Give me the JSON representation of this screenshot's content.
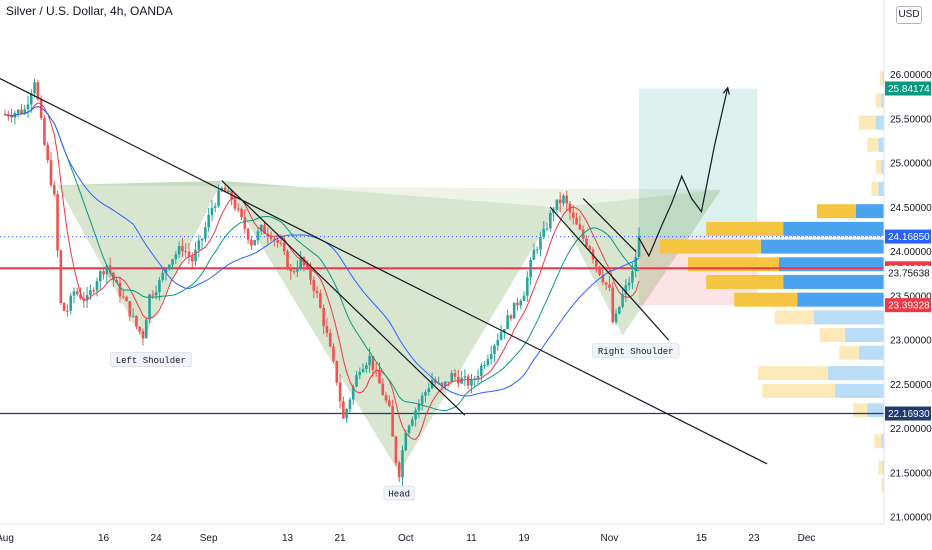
{
  "title": "Silver / U.S. Dollar, 4h, OANDA",
  "currency_button": "USD",
  "chart_data": {
    "type": "candlestick",
    "symbol": "Silver / U.S. Dollar",
    "interval": "4h",
    "source": "OANDA",
    "y_axis": {
      "ylim": [
        21.0,
        26.2
      ],
      "tick_labels": [
        "21.00000",
        "21.50000",
        "22.00000",
        "22.50000",
        "23.00000",
        "23.50000",
        "24.00000",
        "24.50000",
        "25.00000",
        "25.50000",
        "26.00000"
      ],
      "tick_values": [
        21.0,
        21.5,
        22.0,
        22.5,
        23.0,
        23.5,
        24.0,
        24.5,
        25.0,
        25.5,
        26.0
      ]
    },
    "x_axis": {
      "tick_labels": [
        "Aug",
        "16",
        "24",
        "Sep",
        "13",
        "21",
        "Oct",
        "11",
        "19",
        "Nov",
        "15",
        "23",
        "Dec"
      ],
      "tick_days": [
        0,
        15,
        23,
        31,
        43,
        51,
        61,
        71,
        79,
        92,
        106,
        114,
        122
      ]
    },
    "price_tags": [
      {
        "value": "25.84174",
        "num": 25.84174,
        "color": "#089981"
      },
      {
        "value": "24.16850",
        "num": 24.1685,
        "color": "#2962ff"
      },
      {
        "value": "23.81010",
        "num": 23.8101,
        "color": "#f23645"
      },
      {
        "value": "23.75638",
        "num": 23.75638,
        "color": "none"
      },
      {
        "value": "23.39328",
        "num": 23.39328,
        "color": "#f23645"
      },
      {
        "value": "22.16930",
        "num": 22.1693,
        "color": "#1e3a6e"
      }
    ],
    "horizontal_lines": [
      {
        "value": 23.8101,
        "color": "#f23645"
      },
      {
        "value": 22.1693,
        "color": "#1e3a6e"
      }
    ],
    "annotations": [
      "Left Shoulder",
      "Head",
      "Right Shoulder"
    ],
    "close_path": [
      [
        0,
        25.55
      ],
      [
        3,
        25.6
      ],
      [
        4.5,
        25.95
      ],
      [
        6,
        25.2
      ],
      [
        7.5,
        24.6
      ],
      [
        8.5,
        23.4
      ],
      [
        9.3,
        23.3
      ],
      [
        10.5,
        23.55
      ],
      [
        12.5,
        23.45
      ],
      [
        14,
        23.7
      ],
      [
        15.5,
        23.85
      ],
      [
        17,
        23.6
      ],
      [
        18.5,
        23.4
      ],
      [
        20,
        23.15
      ],
      [
        21,
        23.05
      ],
      [
        22,
        23.5
      ],
      [
        23.5,
        23.65
      ],
      [
        25,
        23.9
      ],
      [
        27,
        24.05
      ],
      [
        28.5,
        23.9
      ],
      [
        30,
        24.15
      ],
      [
        31.5,
        24.5
      ],
      [
        33,
        24.7
      ],
      [
        34.5,
        24.6
      ],
      [
        36,
        24.35
      ],
      [
        37.5,
        24.1
      ],
      [
        39,
        24.25
      ],
      [
        40.5,
        24.2
      ],
      [
        42,
        24.05
      ],
      [
        43.5,
        23.75
      ],
      [
        45,
        23.9
      ],
      [
        46.5,
        23.7
      ],
      [
        47.5,
        23.5
      ],
      [
        49,
        23.05
      ],
      [
        50.5,
        22.55
      ],
      [
        51.5,
        22.1
      ],
      [
        52.5,
        22.35
      ],
      [
        54,
        22.7
      ],
      [
        55.5,
        22.8
      ],
      [
        57,
        22.5
      ],
      [
        58.5,
        22.2
      ],
      [
        59.3,
        21.7
      ],
      [
        60,
        21.5
      ],
      [
        61,
        22.0
      ],
      [
        62,
        22.15
      ],
      [
        63.5,
        22.35
      ],
      [
        65,
        22.55
      ],
      [
        66.5,
        22.45
      ],
      [
        68,
        22.6
      ],
      [
        69.5,
        22.55
      ],
      [
        71,
        22.5
      ],
      [
        72.5,
        22.7
      ],
      [
        74,
        22.9
      ],
      [
        75.5,
        23.1
      ],
      [
        77,
        23.3
      ],
      [
        79,
        23.55
      ],
      [
        80.5,
        24.0
      ],
      [
        82,
        24.2
      ],
      [
        83.5,
        24.5
      ],
      [
        85,
        24.6
      ],
      [
        86.5,
        24.35
      ],
      [
        88,
        24.15
      ],
      [
        89,
        24.05
      ],
      [
        90,
        23.85
      ],
      [
        91,
        23.7
      ],
      [
        92,
        23.55
      ],
      [
        92.5,
        23.2
      ],
      [
        93,
        23.25
      ],
      [
        94,
        23.5
      ],
      [
        95.5,
        23.75
      ],
      [
        96.5,
        24.15
      ]
    ],
    "overlays": {
      "moving_averages": [
        {
          "name": "ma_fast",
          "color": "#f23645"
        },
        {
          "name": "ma_mid",
          "color": "#089981"
        },
        {
          "name": "ma_slow",
          "color": "#2962ff"
        }
      ],
      "trendlines": [
        {
          "from": [
            -2,
            26.0
          ],
          "to": [
            116,
            21.6
          ]
        },
        {
          "from": [
            33,
            24.8
          ],
          "to": [
            70,
            22.15
          ]
        },
        {
          "from": [
            83,
            24.5
          ],
          "to": [
            101,
            23.0
          ]
        },
        {
          "from": [
            88,
            24.6
          ],
          "to": [
            96,
            24.0
          ]
        }
      ],
      "head_and_shoulders_fill": [
        [
          8,
          24.75
        ],
        [
          21,
          23.0
        ],
        [
          33,
          24.8
        ],
        [
          60,
          21.5
        ],
        [
          84,
          24.5
        ],
        [
          94,
          23.05
        ],
        [
          96.5,
          24.15
        ],
        [
          97,
          23.7
        ],
        [
          109,
          24.7
        ]
      ],
      "projected_path": [
        [
          96.5,
          24.15
        ],
        [
          98,
          23.95
        ],
        [
          100,
          24.3
        ],
        [
          101.5,
          24.55
        ],
        [
          103,
          24.85
        ],
        [
          104.5,
          24.6
        ],
        [
          106,
          24.45
        ],
        [
          108,
          25.2
        ],
        [
          110,
          25.85
        ]
      ],
      "long_position": {
        "entry": 24.1685,
        "target": 25.84174,
        "stop": 23.39328,
        "start_day": 96.5,
        "end_day": 114.5
      }
    },
    "volume_profile": [
      {
        "price": 21.35,
        "up": 0.02,
        "down": 0.0
      },
      {
        "price": 21.55,
        "up": 0.03,
        "down": 0.01
      },
      {
        "price": 21.85,
        "up": 0.05,
        "down": 0.02
      },
      {
        "price": 22.2,
        "up": 0.1,
        "down": 0.12
      },
      {
        "price": 22.42,
        "up": 0.52,
        "down": 0.35
      },
      {
        "price": 22.62,
        "up": 0.5,
        "down": 0.4
      },
      {
        "price": 22.85,
        "up": 0.14,
        "down": 0.18
      },
      {
        "price": 23.05,
        "up": 0.18,
        "down": 0.28
      },
      {
        "price": 23.25,
        "up": 0.28,
        "down": 0.5
      },
      {
        "price": 23.45,
        "up": 0.45,
        "down": 0.62
      },
      {
        "price": 23.65,
        "up": 0.55,
        "down": 0.72
      },
      {
        "price": 23.85,
        "up": 0.65,
        "down": 0.75
      },
      {
        "price": 24.05,
        "up": 0.72,
        "down": 0.88
      },
      {
        "price": 24.25,
        "up": 0.55,
        "down": 0.72
      },
      {
        "price": 24.45,
        "up": 0.28,
        "down": 0.2
      },
      {
        "price": 24.7,
        "up": 0.05,
        "down": 0.04
      },
      {
        "price": 24.95,
        "up": 0.04,
        "down": 0.02
      },
      {
        "price": 25.2,
        "up": 0.08,
        "down": 0.04
      },
      {
        "price": 25.45,
        "up": 0.12,
        "down": 0.06
      },
      {
        "price": 25.7,
        "up": 0.04,
        "down": 0.02
      },
      {
        "price": 25.95,
        "up": 0.02,
        "down": 0.01
      }
    ]
  }
}
